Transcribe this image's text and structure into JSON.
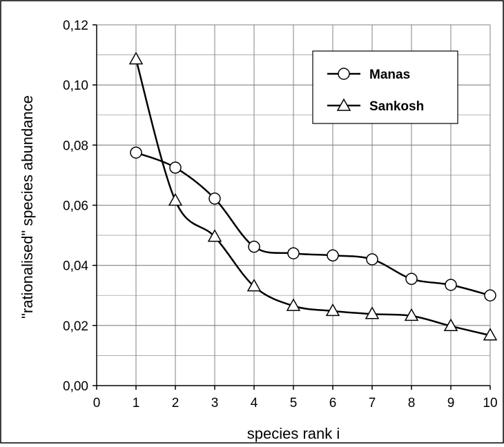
{
  "chart_data": {
    "type": "line",
    "title": "",
    "xlabel": "species  rank  i",
    "ylabel": "\"rationalised\"  species  abundance",
    "xlim": [
      0,
      10
    ],
    "ylim": [
      0,
      0.12
    ],
    "x_ticks": [
      0,
      1,
      2,
      3,
      4,
      5,
      6,
      7,
      8,
      9,
      10
    ],
    "x_tick_labels": [
      "0",
      "1",
      "2",
      "3",
      "4",
      "5",
      "6",
      "7",
      "8",
      "9",
      "10"
    ],
    "y_ticks": [
      0,
      0.02,
      0.04,
      0.06,
      0.08,
      0.1,
      0.12
    ],
    "y_tick_labels": [
      "0,00",
      "0,02",
      "0,04",
      "0,06",
      "0,08",
      "0,10",
      "0,12"
    ],
    "grid": true,
    "legend_position": "top-right",
    "x": [
      1,
      2,
      3,
      4,
      5,
      6,
      7,
      8,
      9,
      10
    ],
    "series": [
      {
        "name": "Manas",
        "marker": "circle",
        "values": [
          0.0775,
          0.0725,
          0.0622,
          0.0462,
          0.044,
          0.0433,
          0.042,
          0.0355,
          0.0335,
          0.03
        ]
      },
      {
        "name": "Sankosh",
        "marker": "triangle",
        "values": [
          0.1085,
          0.0615,
          0.0495,
          0.033,
          0.0265,
          0.0248,
          0.0238,
          0.0232,
          0.0198,
          0.0167
        ]
      }
    ],
    "colors": {
      "line": "#000000",
      "marker_fill": "#ffffff",
      "grid": "#808080",
      "background": "#ffffff"
    }
  }
}
